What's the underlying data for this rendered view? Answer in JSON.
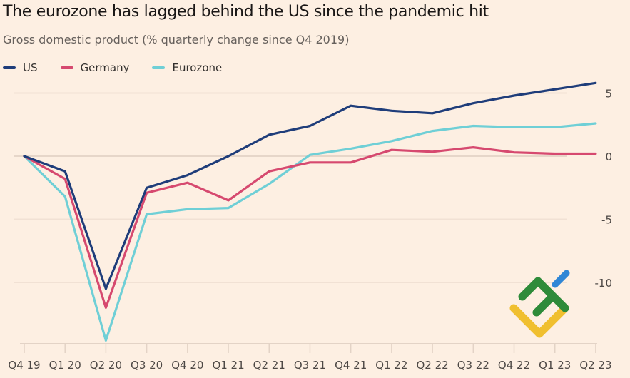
{
  "header": {
    "title": "The eurozone has lagged behind the US since the pandemic hit",
    "subtitle": "Gross domestic product (% quarterly change since Q4 2019)"
  },
  "legend": [
    {
      "label": "US",
      "color": "#1f3d7a"
    },
    {
      "label": "Germany",
      "color": "#d6496f"
    },
    {
      "label": "Eurozone",
      "color": "#6fcfd6"
    }
  ],
  "chart_data": {
    "type": "line",
    "title": "The eurozone has lagged behind the US since the pandemic hit",
    "subtitle": "Gross domestic product (% quarterly change since Q4 2019)",
    "xlabel": "",
    "ylabel": "",
    "x": [
      "Q4 19",
      "Q1 20",
      "Q2 20",
      "Q3 20",
      "Q4 20",
      "Q1 21",
      "Q2 21",
      "Q3 21",
      "Q4 21",
      "Q1 22",
      "Q2 22",
      "Q3 22",
      "Q4 22",
      "Q1 23",
      "Q2 23"
    ],
    "ylim": [
      -15,
      6
    ],
    "yticks": [
      5,
      0,
      -5,
      -10
    ],
    "ytick_labels": [
      "5",
      "0",
      "-5",
      "-10"
    ],
    "y_axis_side": "right",
    "grid": true,
    "legend_position": "top-left",
    "series": [
      {
        "name": "US",
        "color": "#1f3d7a",
        "values": [
          0,
          -1.2,
          -10.5,
          -2.5,
          -1.5,
          0.0,
          1.7,
          2.4,
          4.0,
          3.6,
          3.4,
          4.2,
          4.8,
          5.3,
          5.8
        ]
      },
      {
        "name": "Germany",
        "color": "#d6496f",
        "values": [
          0,
          -1.8,
          -12.0,
          -2.9,
          -2.1,
          -3.5,
          -1.2,
          -0.5,
          -0.5,
          0.5,
          0.35,
          0.7,
          0.3,
          0.2,
          0.2
        ]
      },
      {
        "name": "Eurozone",
        "color": "#6fcfd6",
        "values": [
          0,
          -3.2,
          -14.6,
          -4.6,
          -4.2,
          -4.1,
          -2.2,
          0.1,
          0.6,
          1.2,
          2.0,
          2.4,
          2.3,
          2.3,
          2.6
        ]
      }
    ]
  },
  "watermark": {
    "name": "broker-logo"
  }
}
